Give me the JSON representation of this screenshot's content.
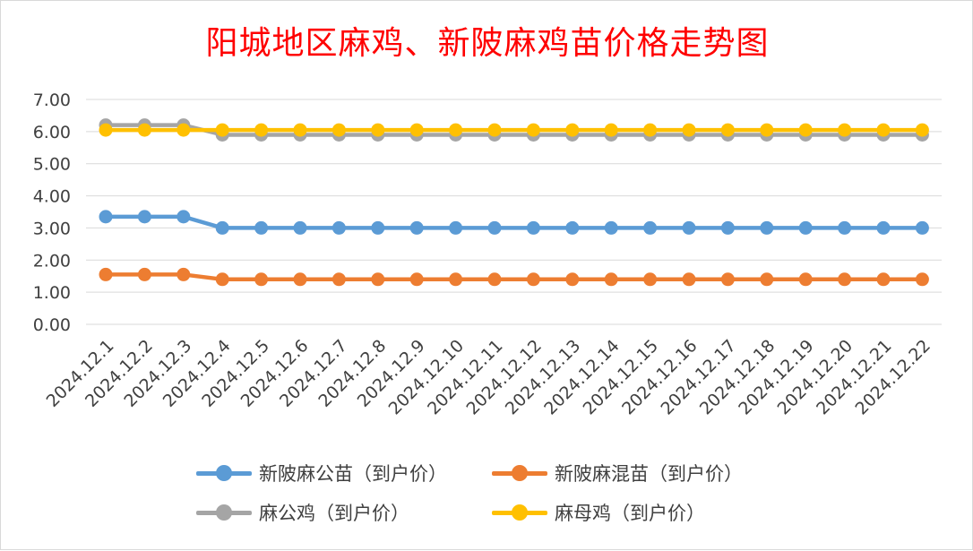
{
  "chart_data": {
    "type": "line",
    "title": "阳城地区麻鸡、新陂麻鸡苗价格走势图",
    "xlabel": "",
    "ylabel": "",
    "categories": [
      "2024.12.1",
      "2024.12.2",
      "2024.12.3",
      "2024.12.4",
      "2024.12.5",
      "2024.12.6",
      "2024.12.7",
      "2024.12.8",
      "2024.12.9",
      "2024.12.10",
      "2024.12.11",
      "2024.12.12",
      "2024.12.13",
      "2024.12.14",
      "2024.12.15",
      "2024.12.16",
      "2024.12.17",
      "2024.12.18",
      "2024.12.19",
      "2024.12.20",
      "2024.12.21",
      "2024.12.22"
    ],
    "ylim": [
      0,
      7
    ],
    "yticks": [
      "0.00",
      "1.00",
      "2.00",
      "3.00",
      "4.00",
      "5.00",
      "6.00",
      "7.00"
    ],
    "grid": true,
    "legend_position": "bottom",
    "series": [
      {
        "name": "新陂麻公苗（到户价）",
        "color": "#5b9bd5",
        "values": [
          3.35,
          3.35,
          3.35,
          3.0,
          3.0,
          3.0,
          3.0,
          3.0,
          3.0,
          3.0,
          3.0,
          3.0,
          3.0,
          3.0,
          3.0,
          3.0,
          3.0,
          3.0,
          3.0,
          3.0,
          3.0,
          3.0
        ]
      },
      {
        "name": "新陂麻混苗（到户价）",
        "color": "#ed7d31",
        "values": [
          1.55,
          1.55,
          1.55,
          1.4,
          1.4,
          1.4,
          1.4,
          1.4,
          1.4,
          1.4,
          1.4,
          1.4,
          1.4,
          1.4,
          1.4,
          1.4,
          1.4,
          1.4,
          1.4,
          1.4,
          1.4,
          1.4
        ]
      },
      {
        "name": "麻公鸡（到户价）",
        "color": "#a5a5a5",
        "values": [
          6.2,
          6.2,
          6.2,
          5.9,
          5.9,
          5.9,
          5.9,
          5.9,
          5.9,
          5.9,
          5.9,
          5.9,
          5.9,
          5.9,
          5.9,
          5.9,
          5.9,
          5.9,
          5.9,
          5.9,
          5.9,
          5.9
        ]
      },
      {
        "name": "麻母鸡（到户价）",
        "color": "#ffc000",
        "values": [
          6.05,
          6.05,
          6.05,
          6.05,
          6.05,
          6.05,
          6.05,
          6.05,
          6.05,
          6.05,
          6.05,
          6.05,
          6.05,
          6.05,
          6.05,
          6.05,
          6.05,
          6.05,
          6.05,
          6.05,
          6.05,
          6.05
        ]
      }
    ]
  },
  "legend": {
    "items": [
      {
        "label": "新陂麻公苗（到户价）",
        "color": "#5b9bd5"
      },
      {
        "label": "新陂麻混苗（到户价）",
        "color": "#ed7d31"
      },
      {
        "label": "麻公鸡（到户价）",
        "color": "#a5a5a5"
      },
      {
        "label": "麻母鸡（到户价）",
        "color": "#ffc000"
      }
    ]
  }
}
